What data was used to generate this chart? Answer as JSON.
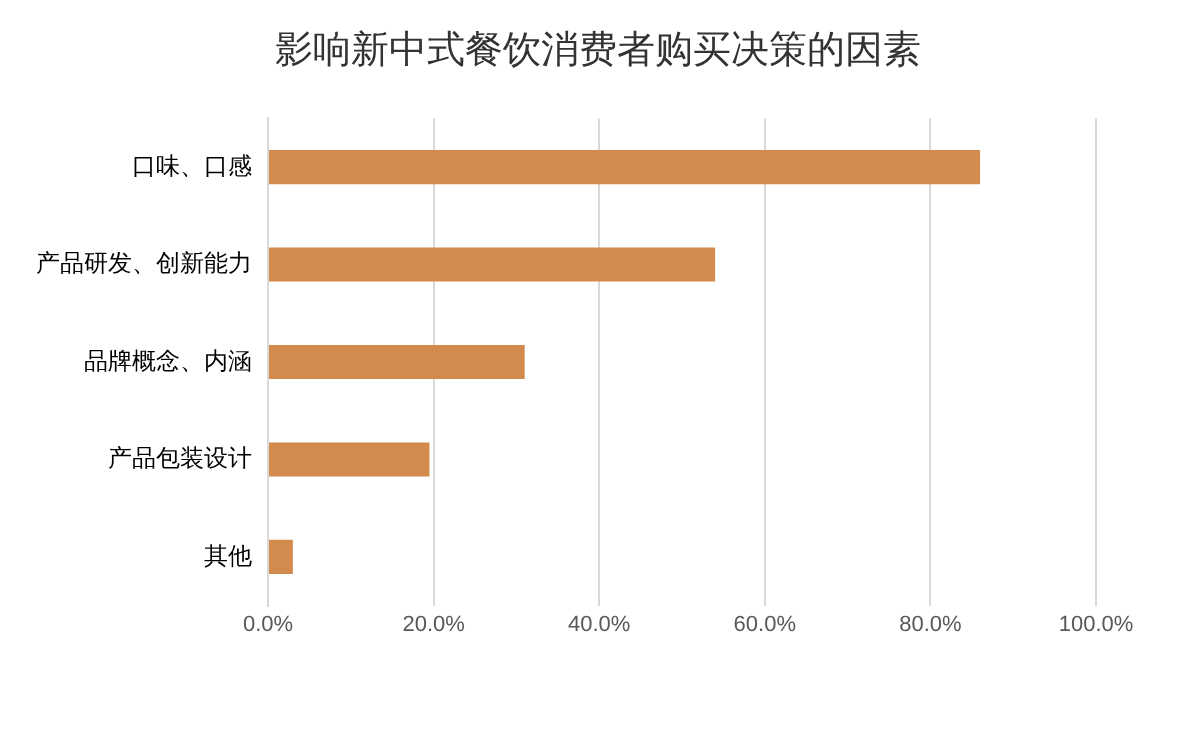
{
  "chart_data": {
    "type": "bar",
    "orientation": "horizontal",
    "title": "影响新中式餐饮消费者购买决策的因素",
    "categories": [
      "口味、口感",
      "产品研发、创新能力",
      "品牌概念、内涵",
      "产品包装设计",
      "其他"
    ],
    "values": [
      86,
      54,
      31,
      19.5,
      3
    ],
    "color": "#d38b4d",
    "xlim": [
      0,
      100
    ],
    "xticks": [
      {
        "value": 0,
        "label": "0.0%"
      },
      {
        "value": 20,
        "label": "20.0%"
      },
      {
        "value": 40,
        "label": "40.0%"
      },
      {
        "value": 60,
        "label": "60.0%"
      },
      {
        "value": 80,
        "label": "80.0%"
      },
      {
        "value": 100,
        "label": "100.0%"
      }
    ],
    "grid": "x",
    "legend": false
  }
}
